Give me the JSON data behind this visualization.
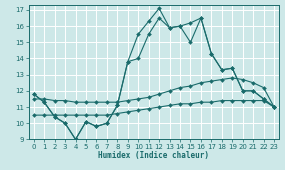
{
  "bg_color": "#cde8e8",
  "grid_color": "#b0d0d0",
  "line_color": "#1a6b6b",
  "x_label": "Humidex (Indice chaleur)",
  "xlim": [
    -0.5,
    23.5
  ],
  "ylim": [
    9,
    17.3
  ],
  "xticks": [
    0,
    1,
    2,
    3,
    4,
    5,
    6,
    7,
    8,
    9,
    10,
    11,
    12,
    13,
    14,
    15,
    16,
    17,
    18,
    19,
    20,
    21,
    22,
    23
  ],
  "yticks": [
    9,
    10,
    11,
    12,
    13,
    14,
    15,
    16,
    17
  ],
  "series": [
    {
      "x": [
        0,
        1,
        2,
        3,
        4,
        5,
        6,
        7,
        8,
        9,
        10,
        11,
        12,
        13,
        14,
        15,
        16,
        17,
        18,
        19,
        20,
        21,
        22,
        23
      ],
      "y": [
        10.5,
        10.5,
        10.5,
        10.5,
        10.5,
        10.5,
        10.5,
        10.5,
        10.6,
        10.7,
        10.8,
        10.9,
        11.0,
        11.1,
        11.2,
        11.2,
        11.3,
        11.3,
        11.4,
        11.4,
        11.4,
        11.4,
        11.4,
        11.0
      ]
    },
    {
      "x": [
        0,
        1,
        2,
        3,
        4,
        5,
        6,
        7,
        8,
        9,
        10,
        11,
        12,
        13,
        14,
        15,
        16,
        17,
        18,
        19,
        20,
        21,
        22,
        23
      ],
      "y": [
        11.5,
        11.5,
        11.4,
        11.4,
        11.3,
        11.3,
        11.3,
        11.3,
        11.3,
        11.4,
        11.5,
        11.6,
        11.8,
        12.0,
        12.2,
        12.3,
        12.5,
        12.6,
        12.7,
        12.8,
        12.7,
        12.5,
        12.2,
        11.0
      ]
    },
    {
      "x": [
        0,
        1,
        2,
        3,
        4,
        5,
        6,
        7,
        8,
        9,
        10,
        11,
        12,
        13,
        14,
        15,
        16,
        17,
        18,
        19,
        20,
        21,
        22,
        23
      ],
      "y": [
        11.8,
        11.3,
        10.4,
        10.0,
        9.0,
        10.1,
        9.8,
        10.0,
        11.1,
        13.8,
        14.0,
        15.5,
        16.5,
        15.9,
        16.0,
        15.0,
        16.5,
        14.3,
        13.3,
        13.4,
        12.0,
        12.0,
        11.5,
        11.0
      ]
    },
    {
      "x": [
        0,
        1,
        2,
        3,
        4,
        5,
        6,
        7,
        8,
        9,
        10,
        11,
        12,
        13,
        14,
        15,
        16,
        17,
        18,
        19,
        20,
        21,
        22,
        23
      ],
      "y": [
        11.8,
        11.3,
        10.4,
        10.0,
        9.0,
        10.1,
        9.8,
        10.0,
        11.1,
        13.8,
        15.5,
        16.3,
        17.1,
        15.9,
        16.0,
        16.2,
        16.5,
        14.3,
        13.3,
        13.4,
        12.0,
        12.0,
        11.5,
        11.0
      ]
    }
  ]
}
